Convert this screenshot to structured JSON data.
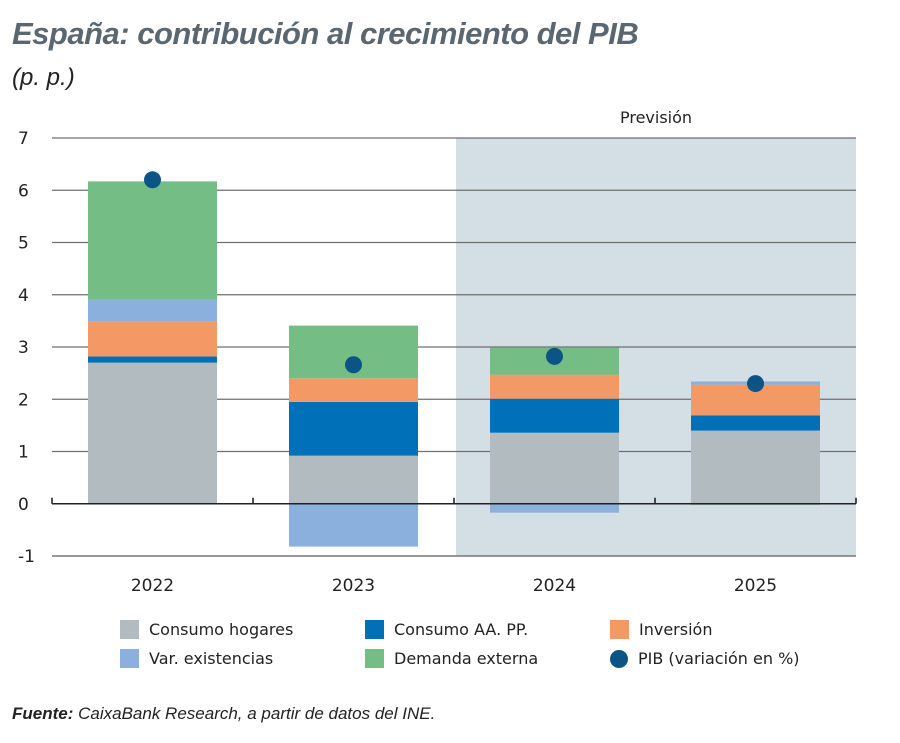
{
  "chart_data": {
    "type": "bar",
    "stacked": true,
    "title": "España: contribución al crecimiento del PIB",
    "subtitle": "(p. p.)",
    "categories": [
      "2022",
      "2023",
      "2024",
      "2025"
    ],
    "ylim": [
      -1,
      7
    ],
    "yticks": [
      -1,
      0,
      1,
      2,
      3,
      4,
      5,
      6,
      7
    ],
    "grid": true,
    "forecast_label": "Previsión",
    "forecast_categories": [
      "2024",
      "2025"
    ],
    "forecast_shade_color": "#d3dee5",
    "series": [
      {
        "name": "Consumo hogares",
        "color": "#b2bbc0",
        "values": [
          2.7,
          0.92,
          1.36,
          1.4
        ]
      },
      {
        "name": "Consumo AA. PP.",
        "color": "#0070b9",
        "values": [
          0.12,
          1.03,
          0.65,
          0.29
        ]
      },
      {
        "name": "Inversión",
        "color": "#f29966",
        "values": [
          0.67,
          0.45,
          0.46,
          0.59
        ]
      },
      {
        "name": "Var. existencias",
        "color": "#8cb0de",
        "values": [
          0.42,
          -0.82,
          -0.17,
          0.06
        ]
      },
      {
        "name": "Demanda externa",
        "color": "#74be86",
        "values": [
          2.26,
          1.01,
          0.52,
          -0.02
        ]
      }
    ],
    "points": {
      "name": "PIB (variación en %)",
      "color": "#0b5485",
      "values": [
        6.2,
        2.66,
        2.82,
        2.3
      ]
    },
    "legend_position": "bottom"
  },
  "source": {
    "label": "Fuente:",
    "text": " CaixaBank Research, a partir de datos del INE."
  }
}
